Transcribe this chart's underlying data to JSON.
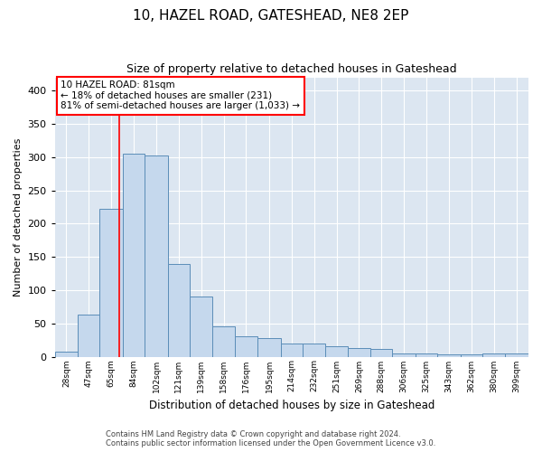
{
  "title": "10, HAZEL ROAD, GATESHEAD, NE8 2EP",
  "subtitle": "Size of property relative to detached houses in Gateshead",
  "xlabel": "Distribution of detached houses by size in Gateshead",
  "ylabel": "Number of detached properties",
  "bar_color": "#c5d8ed",
  "bar_edge_color": "#5b8db8",
  "plot_bg_color": "#dce6f1",
  "grid_color": "white",
  "vline_x": 81,
  "vline_color": "red",
  "annotation_text": "10 HAZEL ROAD: 81sqm\n← 18% of detached houses are smaller (231)\n81% of semi-detached houses are larger (1,033) →",
  "annotation_box_color": "white",
  "annotation_box_edge": "red",
  "categories": [
    "28sqm",
    "47sqm",
    "65sqm",
    "84sqm",
    "102sqm",
    "121sqm",
    "139sqm",
    "158sqm",
    "176sqm",
    "195sqm",
    "214sqm",
    "232sqm",
    "251sqm",
    "269sqm",
    "288sqm",
    "306sqm",
    "325sqm",
    "343sqm",
    "362sqm",
    "380sqm",
    "399sqm"
  ],
  "bin_edges": [
    28,
    47,
    65,
    84,
    102,
    121,
    139,
    158,
    176,
    195,
    214,
    232,
    251,
    269,
    288,
    306,
    325,
    343,
    362,
    380,
    399,
    418
  ],
  "values": [
    8,
    63,
    222,
    305,
    303,
    140,
    90,
    46,
    30,
    28,
    20,
    20,
    15,
    13,
    11,
    5,
    5,
    3,
    3,
    5,
    5
  ],
  "ylim": [
    0,
    420
  ],
  "yticks": [
    0,
    50,
    100,
    150,
    200,
    250,
    300,
    350,
    400
  ],
  "footer1": "Contains HM Land Registry data © Crown copyright and database right 2024.",
  "footer2": "Contains public sector information licensed under the Open Government Licence v3.0."
}
